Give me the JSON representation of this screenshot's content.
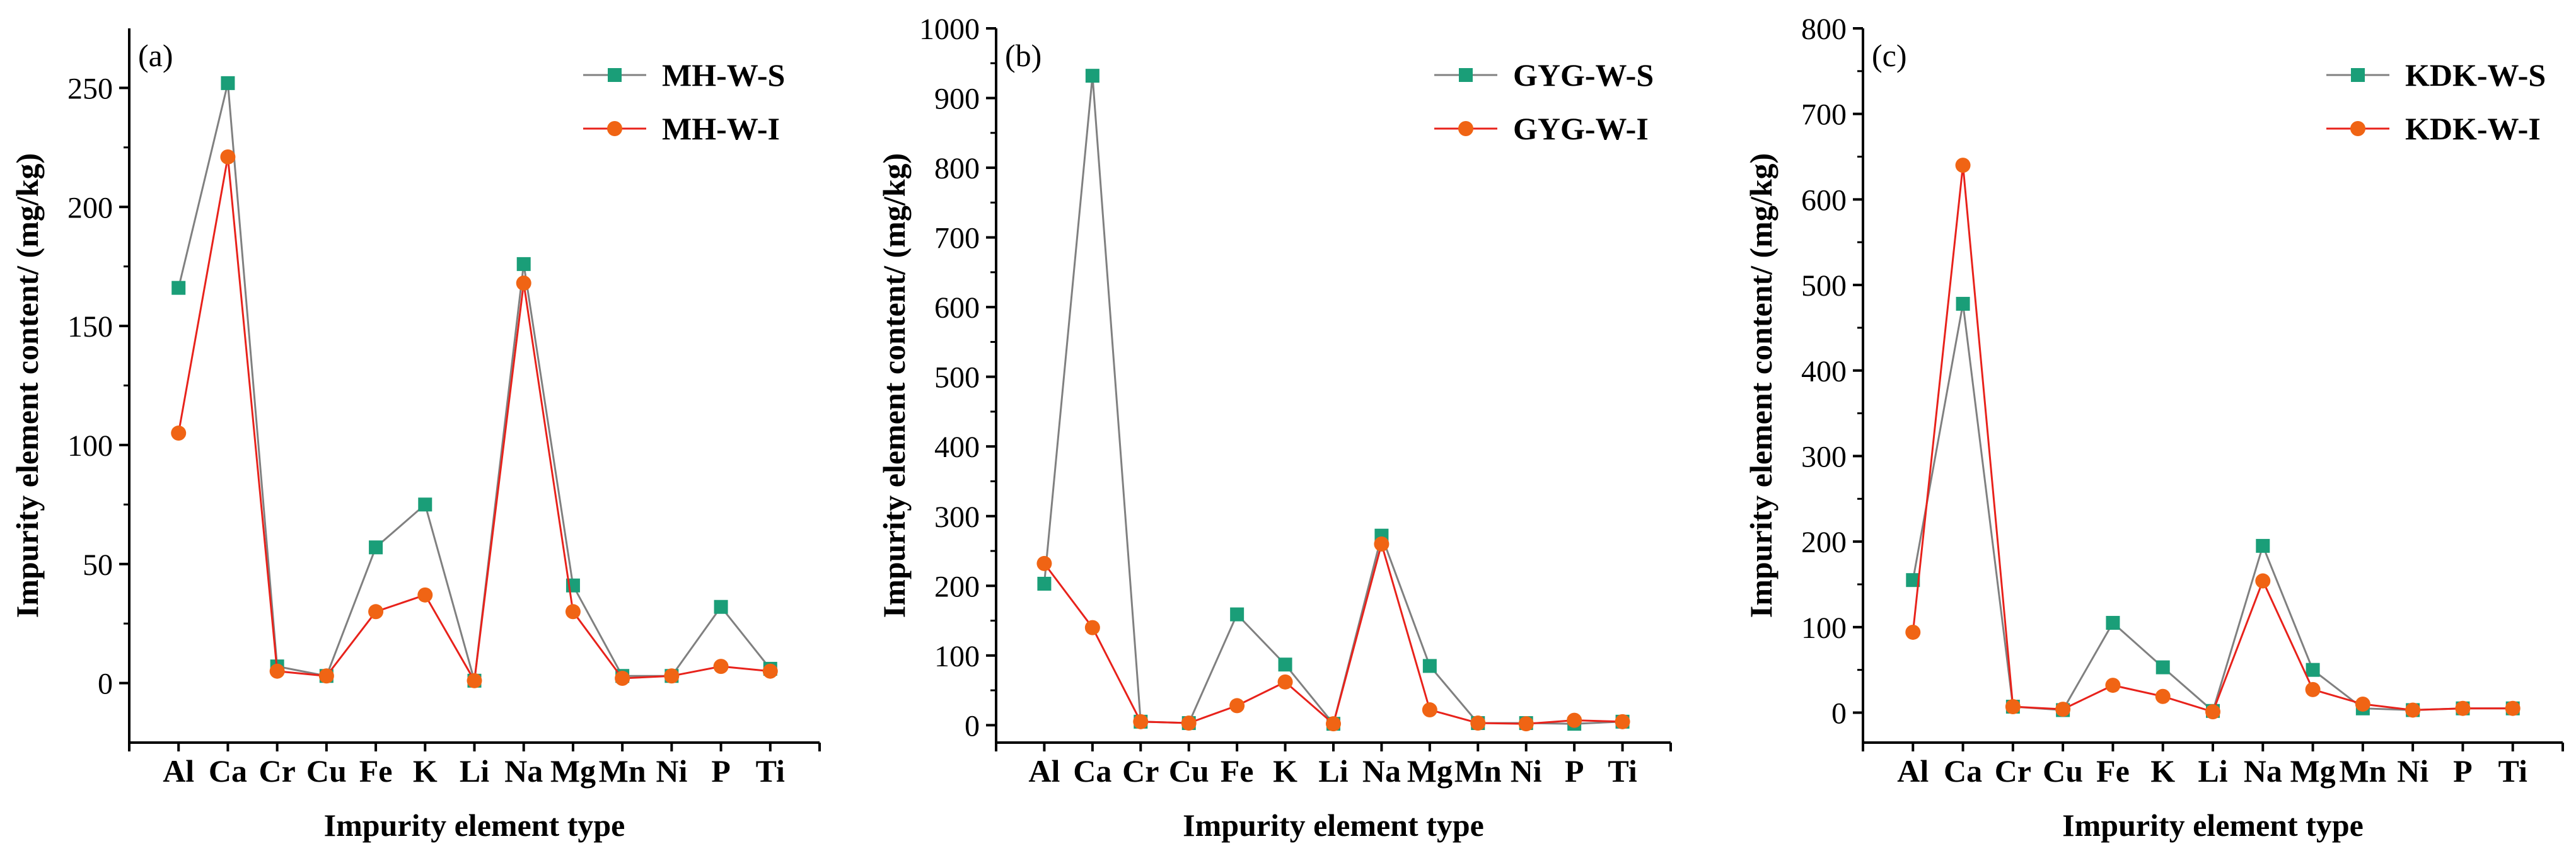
{
  "chart_data": [
    {
      "panel_label": "(a)",
      "type": "line",
      "categories": [
        "Al",
        "Ca",
        "Cr",
        "Cu",
        "Fe",
        "K",
        "Li",
        "Na",
        "Mg",
        "Mn",
        "Ni",
        "P",
        "Ti"
      ],
      "series": [
        {
          "name": "MH-W-S",
          "color": "#808080",
          "marker": "square",
          "marker_color": "#1a9e78",
          "values": [
            166,
            252,
            7,
            3,
            57,
            75,
            1,
            176,
            41,
            3,
            3,
            32,
            6
          ]
        },
        {
          "name": "MH-W-I",
          "color": "#e8221b",
          "marker": "circle",
          "marker_color": "#f06414",
          "values": [
            105,
            221,
            5,
            3,
            30,
            37,
            1,
            168,
            30,
            2,
            3,
            7,
            5
          ]
        }
      ],
      "xlabel": "Impurity element type",
      "ylabel": "Impurity element content/ (mg/kg)",
      "ylim": [
        -25,
        275
      ],
      "yticks": [
        0,
        50,
        100,
        150,
        200,
        250
      ],
      "legend_position": "top-right"
    },
    {
      "panel_label": "(b)",
      "type": "line",
      "categories": [
        "Al",
        "Ca",
        "Cr",
        "Cu",
        "Fe",
        "K",
        "Li",
        "Na",
        "Mg",
        "Mn",
        "Ni",
        "P",
        "Ti"
      ],
      "series": [
        {
          "name": "GYG-W-S",
          "color": "#808080",
          "marker": "square",
          "marker_color": "#1a9e78",
          "values": [
            203,
            932,
            5,
            3,
            159,
            87,
            2,
            272,
            85,
            3,
            3,
            2,
            5
          ]
        },
        {
          "name": "GYG-W-I",
          "color": "#e8221b",
          "marker": "circle",
          "marker_color": "#f06414",
          "values": [
            232,
            140,
            5,
            3,
            28,
            62,
            2,
            260,
            22,
            3,
            2,
            7,
            5
          ]
        }
      ],
      "xlabel": "Impurity element type",
      "ylabel": "Impurity element content/ (mg/kg)",
      "ylim": [
        -25,
        1000
      ],
      "yticks": [
        0,
        100,
        200,
        300,
        400,
        500,
        600,
        700,
        800,
        900,
        1000
      ],
      "legend_position": "top-right"
    },
    {
      "panel_label": "(c)",
      "type": "line",
      "categories": [
        "Al",
        "Ca",
        "Cr",
        "Cu",
        "Fe",
        "K",
        "Li",
        "Na",
        "Mg",
        "Mn",
        "Ni",
        "P",
        "Ti"
      ],
      "series": [
        {
          "name": "KDK-W-S",
          "color": "#808080",
          "marker": "square",
          "marker_color": "#1a9e78",
          "values": [
            155,
            478,
            7,
            3,
            105,
            53,
            2,
            195,
            50,
            5,
            3,
            5,
            5
          ]
        },
        {
          "name": "KDK-W-I",
          "color": "#e8221b",
          "marker": "circle",
          "marker_color": "#f06414",
          "values": [
            94,
            640,
            7,
            4,
            32,
            19,
            1,
            154,
            27,
            10,
            3,
            5,
            5
          ]
        }
      ],
      "xlabel": "Impurity element type",
      "ylabel": "Impurity element content/ (mg/kg)",
      "ylim": [
        -35,
        800
      ],
      "yticks": [
        0,
        100,
        200,
        300,
        400,
        500,
        600,
        700,
        800
      ],
      "legend_position": "top-right"
    }
  ]
}
